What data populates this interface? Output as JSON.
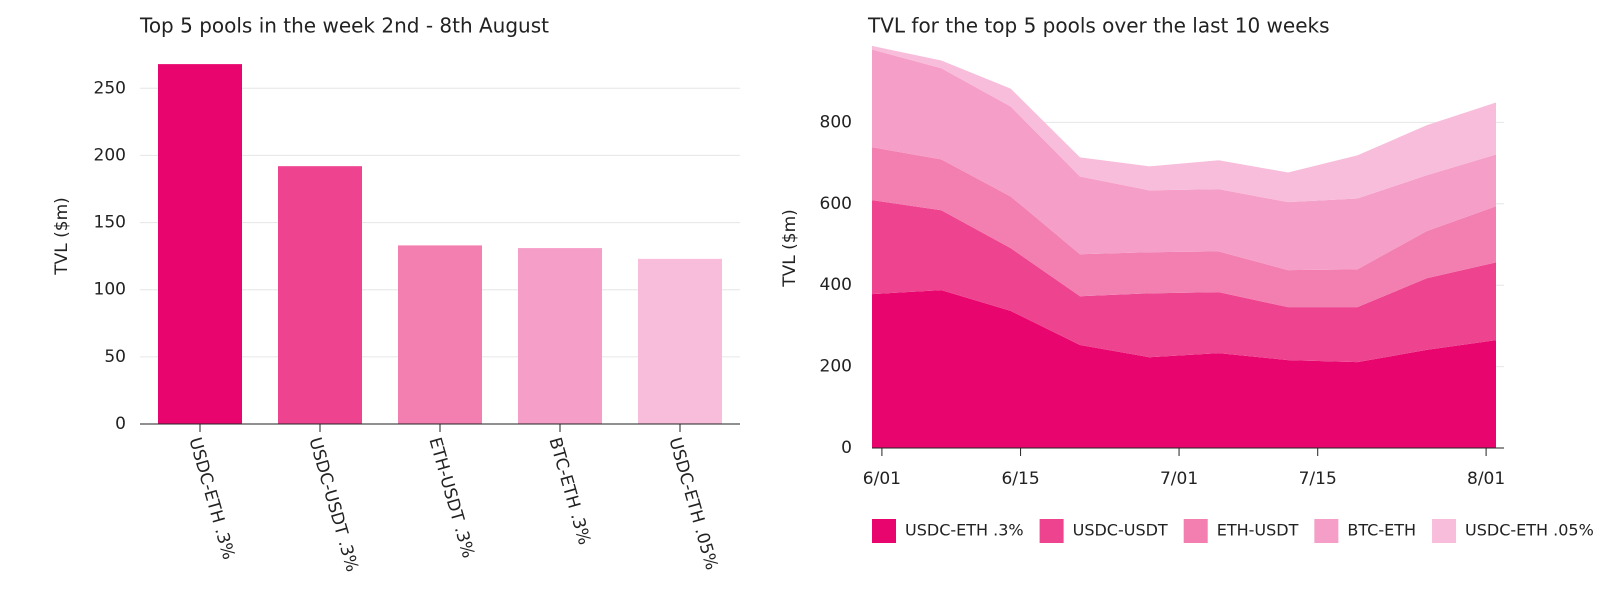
{
  "chart_data": [
    {
      "type": "bar",
      "title": "Top 5 pools in the week 2nd - 8th August",
      "y_label": "TVL ($m)",
      "categories": [
        "USDC-ETH .3%",
        "USDC-USDT .3%",
        "ETH-USDT .3%",
        "BTC-ETH .3%",
        "USDC-ETH .05%"
      ],
      "values": [
        268,
        192,
        133,
        131,
        123
      ],
      "colors": [
        "#e8066e",
        "#ee4490",
        "#f27fb0",
        "#f59ec7",
        "#f8bddb"
      ],
      "ylim": [
        0,
        280
      ],
      "yticks": [
        0,
        50,
        100,
        150,
        200,
        250
      ],
      "grid": true
    },
    {
      "type": "area",
      "stacked": true,
      "title": "TVL for the top 5 pools over the last 10 weeks",
      "y_label": "TVL ($m)",
      "x": [
        "5/31",
        "6/07",
        "6/14",
        "6/21",
        "6/28",
        "7/05",
        "7/12",
        "7/19",
        "7/26",
        "8/02"
      ],
      "xlim": [
        "5/31",
        "8/02"
      ],
      "xticks": [
        "6/01",
        "6/15",
        "7/01",
        "7/15",
        "8/01"
      ],
      "series": [
        {
          "name": "USDC-ETH .3%",
          "color": "#e8066e",
          "values": [
            378,
            388,
            337,
            253,
            223,
            233,
            216,
            211,
            241,
            265
          ]
        },
        {
          "name": "USDC-USDT",
          "color": "#ee4490",
          "values": [
            231,
            196,
            154,
            120,
            157,
            150,
            130,
            135,
            176,
            191
          ]
        },
        {
          "name": "ETH-USDT",
          "color": "#f27fb0",
          "values": [
            130,
            125,
            127,
            103,
            101,
            100,
            91,
            93,
            116,
            138
          ]
        },
        {
          "name": "BTC-ETH",
          "color": "#f59ec7",
          "values": [
            240,
            224,
            221,
            191,
            152,
            153,
            167,
            174,
            137,
            127
          ]
        },
        {
          "name": "USDC-ETH .05%",
          "color": "#f8bddb",
          "values": [
            9,
            19,
            44,
            47,
            59,
            71,
            73,
            106,
            123,
            128
          ]
        }
      ],
      "ylim": [
        0,
        1000
      ],
      "yticks": [
        0,
        200,
        400,
        600,
        800
      ],
      "grid": true,
      "legend": "bottom"
    }
  ]
}
